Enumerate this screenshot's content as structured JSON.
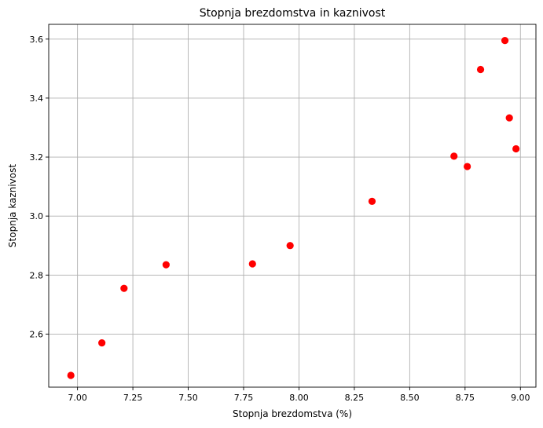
{
  "chart_data": {
    "type": "scatter",
    "title": "Stopnja brezdomstva in kaznivost",
    "xlabel": "Stopnja brezdomstva (%)",
    "ylabel": "Stopnja kaznivost",
    "xlim": [
      6.87,
      9.07
    ],
    "ylim": [
      2.42,
      3.65
    ],
    "xticks": [
      "7.00",
      "7.25",
      "7.50",
      "7.75",
      "8.00",
      "8.25",
      "8.50",
      "8.75",
      "9.00"
    ],
    "yticks": [
      "2.6",
      "2.8",
      "3.0",
      "3.2",
      "3.4",
      "3.6"
    ],
    "grid": true,
    "marker_color": "#ff0000",
    "points": [
      {
        "x": 6.97,
        "y": 2.46
      },
      {
        "x": 7.11,
        "y": 2.57
      },
      {
        "x": 7.21,
        "y": 2.755
      },
      {
        "x": 7.4,
        "y": 2.835
      },
      {
        "x": 7.79,
        "y": 2.838
      },
      {
        "x": 7.96,
        "y": 2.9
      },
      {
        "x": 8.33,
        "y": 3.05
      },
      {
        "x": 8.7,
        "y": 3.203
      },
      {
        "x": 8.76,
        "y": 3.168
      },
      {
        "x": 8.82,
        "y": 3.497
      },
      {
        "x": 8.93,
        "y": 3.595
      },
      {
        "x": 8.95,
        "y": 3.333
      },
      {
        "x": 8.98,
        "y": 3.228
      }
    ]
  }
}
